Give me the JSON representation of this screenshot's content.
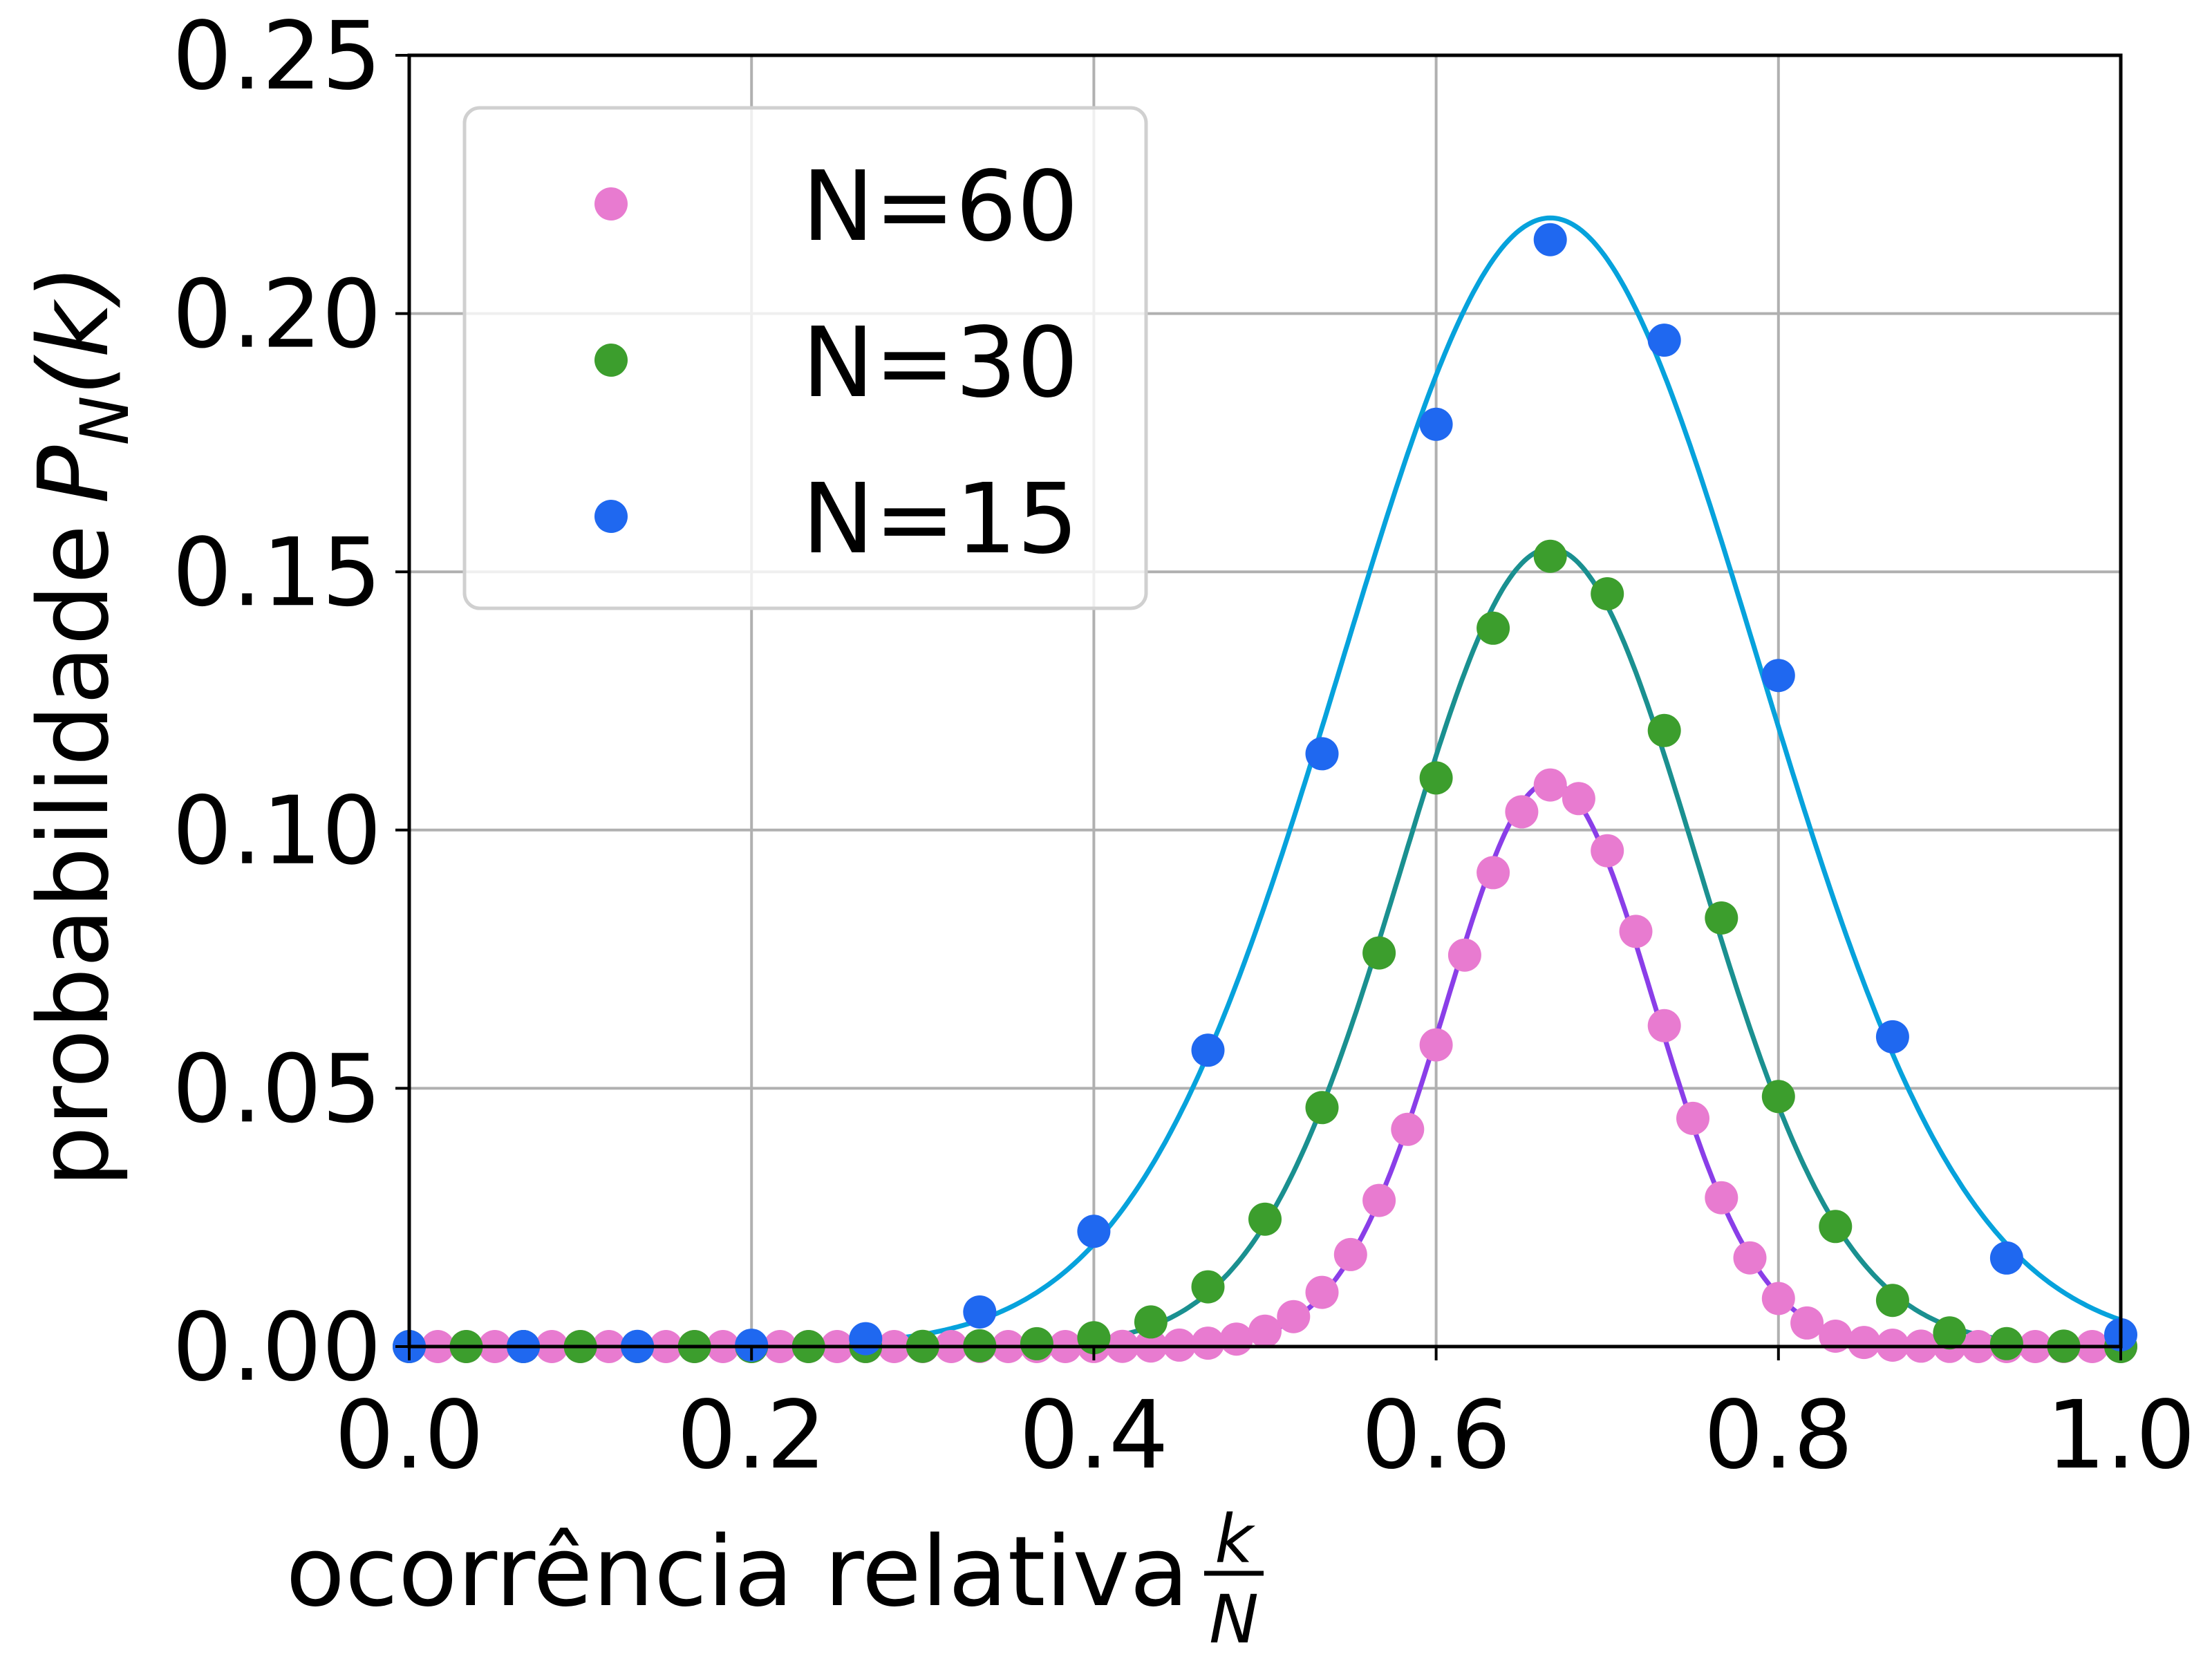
{
  "chart_data": {
    "type": "scatter",
    "xlabel": "ocorrência relativa",
    "xlabel_fraction": {
      "numerator": "k",
      "denominator": "N"
    },
    "ylabel": "probabilidade",
    "ylabel_symbol": {
      "base": "P",
      "subscript": "N",
      "argument": "(k)"
    },
    "xlim": [
      0.0,
      1.0
    ],
    "ylim": [
      0.0,
      0.25
    ],
    "xticks": [
      "0.0",
      "0.2",
      "0.4",
      "0.6",
      "0.8",
      "1.0"
    ],
    "yticks": [
      "0.00",
      "0.05",
      "0.10",
      "0.15",
      "0.20",
      "0.25"
    ],
    "grid": true,
    "legend_position": "top-left",
    "p": 0.6667,
    "series": [
      {
        "name": "N=60",
        "n": 60,
        "marker_color": "#e87bd0",
        "curve_color": "#8a3ee8"
      },
      {
        "name": "N=30",
        "n": 30,
        "marker_color": "#3c9e2d",
        "curve_color": "#1a9090"
      },
      {
        "name": "N=15",
        "n": 15,
        "marker_color": "#1f68f0",
        "curve_color": "#06a2dc"
      }
    ]
  }
}
